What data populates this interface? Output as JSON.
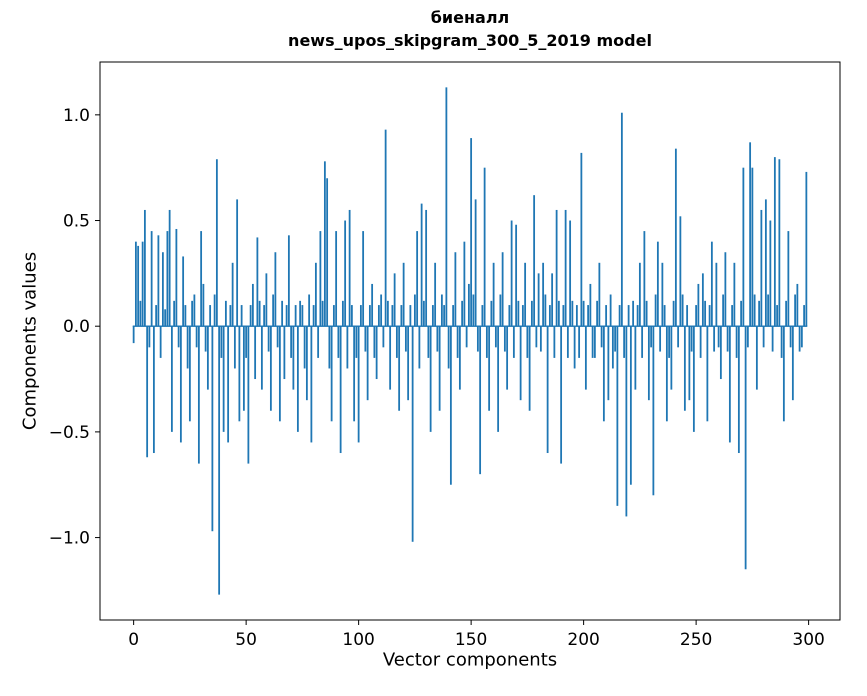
{
  "chart_data": {
    "type": "bar",
    "title": "биеналл",
    "subtitle": "news_upos_skipgram_300_5_2019 model",
    "xlabel": "Vector components",
    "ylabel": "Components values",
    "xlim": [
      -14.95,
      313.95
    ],
    "ylim": [
      -1.39,
      1.25
    ],
    "grid": false,
    "legend": "none",
    "bar_color": "#1f77b4",
    "bar_width": 0.8,
    "x_start": 0,
    "xticks": [
      {
        "value": 0,
        "label": "0"
      },
      {
        "value": 50,
        "label": "50"
      },
      {
        "value": 100,
        "label": "100"
      },
      {
        "value": 150,
        "label": "150"
      },
      {
        "value": 200,
        "label": "200"
      },
      {
        "value": 250,
        "label": "250"
      },
      {
        "value": 300,
        "label": "300"
      }
    ],
    "yticks": [
      {
        "value": 1.0,
        "label": "1.0"
      },
      {
        "value": 0.5,
        "label": "0.5"
      },
      {
        "value": 0.0,
        "label": "0.0"
      },
      {
        "value": -0.5,
        "label": "−0.5"
      },
      {
        "value": -1.0,
        "label": "−1.0"
      }
    ],
    "values": [
      -0.08,
      0.4,
      0.38,
      0.12,
      0.4,
      0.55,
      -0.62,
      -0.1,
      0.45,
      -0.6,
      0.1,
      0.43,
      -0.15,
      0.35,
      0.08,
      0.45,
      0.55,
      -0.5,
      0.12,
      0.46,
      -0.1,
      -0.55,
      0.33,
      0.1,
      -0.2,
      -0.45,
      0.12,
      0.15,
      -0.1,
      -0.65,
      0.45,
      0.2,
      -0.12,
      -0.3,
      0.1,
      -0.97,
      0.15,
      0.79,
      -1.27,
      -0.15,
      -0.5,
      0.12,
      -0.55,
      0.1,
      0.3,
      -0.2,
      0.6,
      -0.45,
      0.1,
      -0.4,
      -0.15,
      -0.65,
      0.1,
      0.2,
      -0.25,
      0.42,
      0.12,
      -0.3,
      0.1,
      0.25,
      -0.12,
      -0.4,
      0.15,
      0.35,
      -0.1,
      -0.45,
      0.12,
      -0.25,
      0.1,
      0.43,
      -0.15,
      -0.3,
      0.1,
      -0.5,
      0.12,
      0.1,
      -0.2,
      -0.35,
      0.15,
      -0.55,
      0.1,
      0.3,
      -0.15,
      0.45,
      0.12,
      0.78,
      0.7,
      -0.2,
      -0.45,
      0.1,
      0.45,
      -0.15,
      -0.6,
      0.12,
      0.5,
      -0.2,
      0.55,
      0.1,
      -0.45,
      -0.15,
      -0.55,
      0.1,
      0.45,
      -0.12,
      -0.35,
      0.1,
      0.2,
      -0.15,
      -0.25,
      0.1,
      0.15,
      -0.1,
      0.93,
      0.12,
      -0.3,
      0.1,
      0.25,
      -0.15,
      -0.4,
      0.1,
      0.3,
      -0.12,
      -0.35,
      0.1,
      -1.02,
      0.15,
      0.45,
      -0.2,
      0.58,
      0.12,
      0.55,
      -0.15,
      -0.5,
      0.1,
      0.3,
      -0.12,
      -0.4,
      0.15,
      0.1,
      1.13,
      -0.2,
      -0.75,
      0.1,
      0.35,
      -0.15,
      -0.3,
      0.12,
      0.4,
      -0.1,
      0.2,
      0.89,
      0.15,
      0.6,
      -0.12,
      -0.7,
      0.1,
      0.75,
      -0.15,
      -0.4,
      0.12,
      0.3,
      -0.1,
      -0.5,
      0.15,
      0.35,
      -0.12,
      -0.3,
      0.1,
      0.5,
      -0.15,
      0.48,
      0.12,
      -0.35,
      0.1,
      0.3,
      -0.15,
      -0.4,
      0.12,
      0.62,
      -0.1,
      0.25,
      -0.12,
      0.3,
      0.15,
      -0.6,
      0.1,
      0.25,
      -0.15,
      0.55,
      0.12,
      -0.65,
      0.1,
      0.55,
      -0.15,
      0.5,
      0.12,
      -0.2,
      0.1,
      -0.15,
      0.82,
      0.12,
      -0.3,
      0.1,
      0.2,
      -0.15,
      -0.15,
      0.12,
      0.3,
      -0.1,
      -0.45,
      0.1,
      -0.35,
      0.15,
      -0.2,
      -0.12,
      -0.85,
      0.1,
      1.01,
      -0.15,
      -0.9,
      0.1,
      -0.75,
      0.12,
      -0.3,
      0.1,
      0.3,
      -0.15,
      0.45,
      0.12,
      -0.35,
      -0.1,
      -0.8,
      0.15,
      0.4,
      -0.12,
      0.3,
      0.1,
      -0.45,
      -0.15,
      -0.3,
      0.12,
      0.84,
      -0.1,
      0.52,
      0.15,
      -0.4,
      0.1,
      -0.35,
      -0.12,
      -0.5,
      0.1,
      0.2,
      -0.15,
      0.25,
      0.12,
      -0.45,
      0.1,
      0.4,
      -0.12,
      0.3,
      -0.1,
      -0.25,
      0.15,
      0.35,
      -0.12,
      -0.55,
      0.1,
      0.3,
      -0.15,
      -0.6,
      0.12,
      0.75,
      -1.15,
      -0.1,
      0.87,
      0.75,
      0.15,
      -0.3,
      0.12,
      0.55,
      -0.1,
      0.6,
      0.15,
      0.5,
      -0.12,
      0.8,
      0.1,
      0.79,
      -0.15,
      -0.45,
      0.12,
      0.45,
      -0.1,
      -0.35,
      0.15,
      0.2,
      -0.12,
      -0.1,
      0.1,
      0.73
    ]
  }
}
